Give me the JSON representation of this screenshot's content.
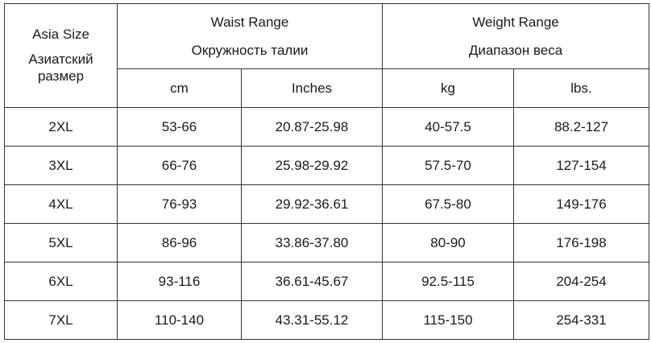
{
  "header": {
    "size": {
      "title": "Asia Size",
      "subtitle": "Азиатский размер"
    },
    "groups": [
      {
        "title": "Waist Range",
        "subtitle": "Окружность талии"
      },
      {
        "title": "Weight Range",
        "subtitle": "Диапазон веса"
      }
    ],
    "units": [
      "cm",
      "Inches",
      "kg",
      "lbs."
    ]
  },
  "table": {
    "rows": [
      [
        "2XL",
        "53-66",
        "20.87-25.98",
        "40-57.5",
        "88.2-127"
      ],
      [
        "3XL",
        "66-76",
        "25.98-29.92",
        "57.5-70",
        "127-154"
      ],
      [
        "4XL",
        "76-93",
        "29.92-36.61",
        "67.5-80",
        "149-176"
      ],
      [
        "5XL",
        "86-96",
        "33.86-37.80",
        "80-90",
        "176-198"
      ],
      [
        "6XL",
        "93-116",
        "36.61-45.67",
        "92.5-115",
        "204-254"
      ],
      [
        "7XL",
        "110-140",
        "43.31-55.12",
        "115-150",
        "254-331"
      ]
    ]
  }
}
